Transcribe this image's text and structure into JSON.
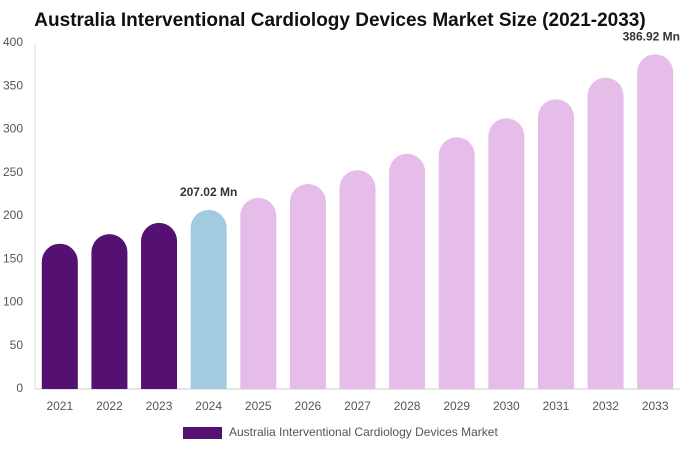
{
  "chart_data": {
    "type": "bar",
    "title": "Australia Interventional Cardiology Devices Market Size (2021-2033)",
    "categories": [
      "2021",
      "2022",
      "2023",
      "2024",
      "2025",
      "2026",
      "2027",
      "2028",
      "2029",
      "2030",
      "2031",
      "2032",
      "2033"
    ],
    "series": [
      {
        "name": "Australia Interventional Cardiology Devices Market",
        "color": "#541171",
        "colors": [
          "#541171",
          "#541171",
          "#541171",
          "#a3cbe0",
          "#e6bde9",
          "#e6bde9",
          "#e6bde9",
          "#e6bde9",
          "#e6bde9",
          "#e6bde9",
          "#e6bde9",
          "#e6bde9",
          "#e6bde9"
        ],
        "values": [
          168,
          179,
          192,
          207.02,
          221,
          237,
          253,
          272,
          291,
          313,
          335,
          360,
          386.92
        ],
        "value_labels": [
          null,
          null,
          null,
          "207.02 Mn",
          null,
          null,
          null,
          null,
          null,
          null,
          null,
          null,
          "386.92 Mn"
        ]
      }
    ],
    "ylim": [
      0,
      400
    ],
    "yticks": [
      0,
      50,
      100,
      150,
      200,
      250,
      300,
      350,
      400
    ],
    "grid": false,
    "legend": "bottom"
  }
}
